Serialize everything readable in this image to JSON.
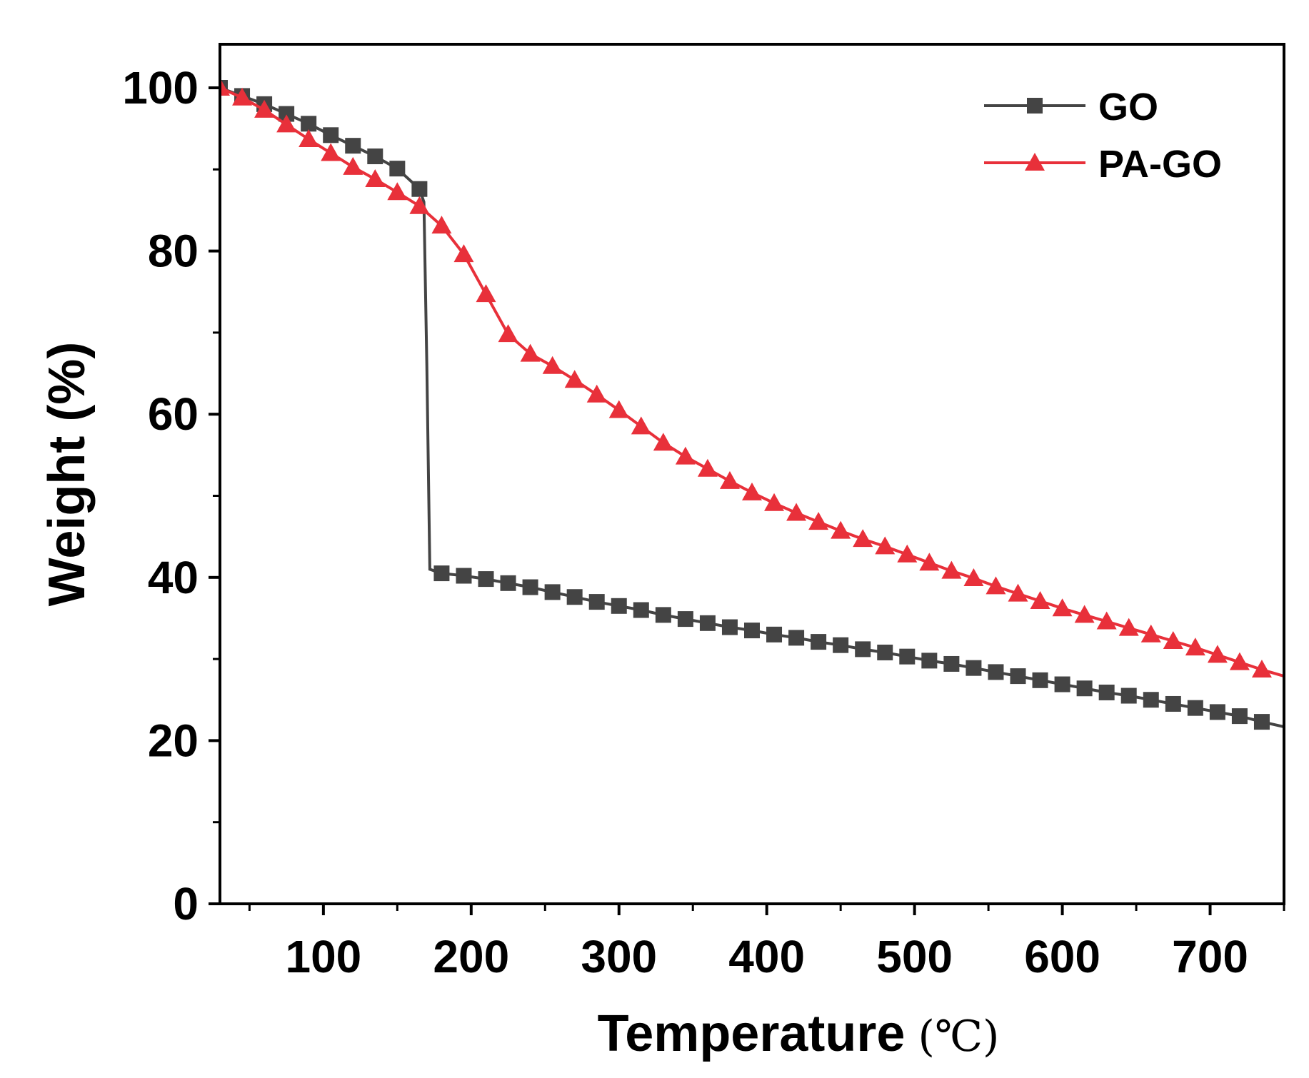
{
  "chart_data": {
    "type": "line",
    "title": "",
    "xlabel": "Temperature",
    "xunit": "(℃)",
    "ylabel": "Weight (%)",
    "xlim": [
      30,
      750
    ],
    "ylim": [
      0,
      105
    ],
    "x_ticks": [
      100,
      200,
      300,
      400,
      500,
      600,
      700
    ],
    "y_ticks": [
      0,
      20,
      40,
      60,
      80,
      100
    ],
    "grid": false,
    "legend_position": "top-right",
    "series": [
      {
        "name": "GO",
        "color": "#444444",
        "marker": "square",
        "x": [
          30,
          45,
          60,
          75,
          90,
          105,
          120,
          135,
          150,
          165,
          168,
          170,
          172,
          180,
          195,
          210,
          225,
          240,
          255,
          270,
          285,
          300,
          315,
          330,
          345,
          360,
          375,
          390,
          405,
          420,
          435,
          450,
          465,
          480,
          495,
          510,
          525,
          540,
          555,
          570,
          585,
          600,
          615,
          630,
          645,
          660,
          675,
          690,
          705,
          720,
          735,
          750
        ],
        "y": [
          100,
          99,
          98,
          96.8,
          95.6,
          94.2,
          92.9,
          91.6,
          90.1,
          87.6,
          86,
          66,
          41,
          40.5,
          40.2,
          39.8,
          39.3,
          38.8,
          38.2,
          37.6,
          37.0,
          36.5,
          36.0,
          35.4,
          34.9,
          34.4,
          33.9,
          33.5,
          33.0,
          32.6,
          32.1,
          31.7,
          31.2,
          30.8,
          30.3,
          29.8,
          29.4,
          28.9,
          28.4,
          27.9,
          27.4,
          26.9,
          26.4,
          25.9,
          25.5,
          25.0,
          24.5,
          24.0,
          23.5,
          23.0,
          22.3,
          21.7
        ],
        "markers_x": [
          30,
          45,
          60,
          75,
          90,
          105,
          120,
          135,
          150,
          165,
          180,
          195,
          210,
          225,
          240,
          255,
          270,
          285,
          300,
          315,
          330,
          345,
          360,
          375,
          390,
          405,
          420,
          435,
          450,
          465,
          480,
          495,
          510,
          525,
          540,
          555,
          570,
          585,
          600,
          615,
          630,
          645,
          660,
          675,
          690,
          705,
          720,
          735
        ]
      },
      {
        "name": "PA-GO",
        "color": "#e8303a",
        "marker": "triangle",
        "x": [
          30,
          45,
          60,
          75,
          90,
          105,
          120,
          135,
          150,
          165,
          180,
          195,
          210,
          225,
          240,
          255,
          270,
          285,
          300,
          315,
          330,
          345,
          360,
          375,
          390,
          405,
          420,
          435,
          450,
          465,
          480,
          495,
          510,
          525,
          540,
          555,
          570,
          585,
          600,
          615,
          630,
          645,
          660,
          675,
          690,
          705,
          720,
          735,
          750
        ],
        "y": [
          100,
          98.8,
          97.3,
          95.5,
          93.7,
          92.0,
          90.3,
          88.8,
          87.2,
          85.5,
          83.1,
          79.6,
          74.7,
          69.8,
          67.4,
          65.9,
          64.2,
          62.4,
          60.5,
          58.5,
          56.5,
          54.8,
          53.3,
          51.8,
          50.4,
          49.1,
          47.9,
          46.8,
          45.7,
          44.7,
          43.8,
          42.8,
          41.8,
          40.8,
          39.9,
          38.9,
          38.0,
          37.1,
          36.2,
          35.4,
          34.6,
          33.8,
          33.0,
          32.2,
          31.4,
          30.5,
          29.6,
          28.7,
          27.9
        ],
        "markers_x": [
          30,
          45,
          60,
          75,
          90,
          105,
          120,
          135,
          150,
          165,
          180,
          195,
          210,
          225,
          240,
          255,
          270,
          285,
          300,
          315,
          330,
          345,
          360,
          375,
          390,
          405,
          420,
          435,
          450,
          465,
          480,
          495,
          510,
          525,
          540,
          555,
          570,
          585,
          600,
          615,
          630,
          645,
          660,
          675,
          690,
          705,
          720,
          735
        ]
      }
    ]
  }
}
